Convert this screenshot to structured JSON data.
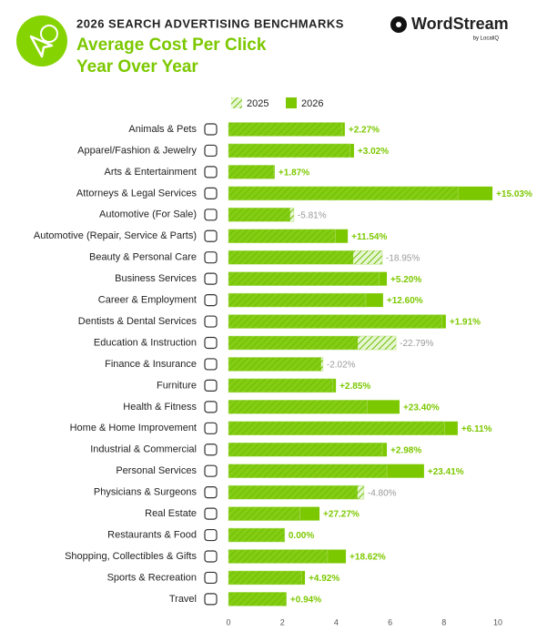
{
  "header": {
    "supertitle": "2026 SEARCH ADVERTISING BENCHMARKS",
    "brand": "WordStream",
    "brand_tagline": "by LocaliQ"
  },
  "chart_data": {
    "type": "bar",
    "orientation": "horizontal",
    "title": "Average Cost Per Click",
    "subtitle": "Year Over Year",
    "categories": [
      "Animals & Pets",
      "Apparel/Fashion & Jewelry",
      "Arts & Entertainment",
      "Attorneys & Legal Services",
      "Automotive (For Sale)",
      "Automotive (Repair, Service & Parts)",
      "Beauty & Personal Care",
      "Business Services",
      "Career & Employment",
      "Dentists & Dental Services",
      "Education & Instruction",
      "Finance & Insurance",
      "Furniture",
      "Health & Fitness",
      "Home & Home Improvement",
      "Industrial & Commercial",
      "Personal Services",
      "Physicians & Surgeons",
      "Real Estate",
      "Restaurants & Food",
      "Shopping, Collectibles & Gifts",
      "Sports & Recreation",
      "Travel"
    ],
    "series": [
      {
        "name": "2025",
        "color": "#7cc800",
        "pattern": "hatch",
        "values": [
          4.22,
          4.52,
          1.69,
          8.52,
          2.43,
          3.97,
          5.71,
          5.59,
          5.1,
          7.92,
          6.22,
          3.51,
          3.88,
          5.15,
          8.02,
          5.71,
          5.88,
          5.03,
          2.66,
          2.09,
          3.68,
          2.71,
          2.14
        ]
      },
      {
        "name": "2026",
        "color": "#7cc800",
        "values": [
          4.32,
          4.66,
          1.72,
          9.8,
          2.29,
          4.43,
          4.63,
          5.88,
          5.74,
          8.07,
          4.8,
          3.44,
          3.99,
          6.35,
          8.51,
          5.88,
          7.26,
          4.79,
          3.38,
          2.09,
          4.36,
          2.84,
          2.16
        ]
      }
    ],
    "change_labels": [
      "+2.27%",
      "+3.02%",
      "+1.87%",
      "+15.03%",
      "-5.81%",
      "+11.54%",
      "-18.95%",
      "+5.20%",
      "+12.60%",
      "+1.91%",
      "-22.79%",
      "-2.02%",
      "+2.85%",
      "+23.40%",
      "+6.11%",
      "+2.98%",
      "+23.41%",
      "-4.80%",
      "+27.27%",
      "0.00%",
      "+18.62%",
      "+4.92%",
      "+0.94%"
    ],
    "xlim": [
      0,
      10
    ],
    "xticks": [
      0,
      2,
      4,
      6,
      8,
      10
    ],
    "grid": false
  }
}
